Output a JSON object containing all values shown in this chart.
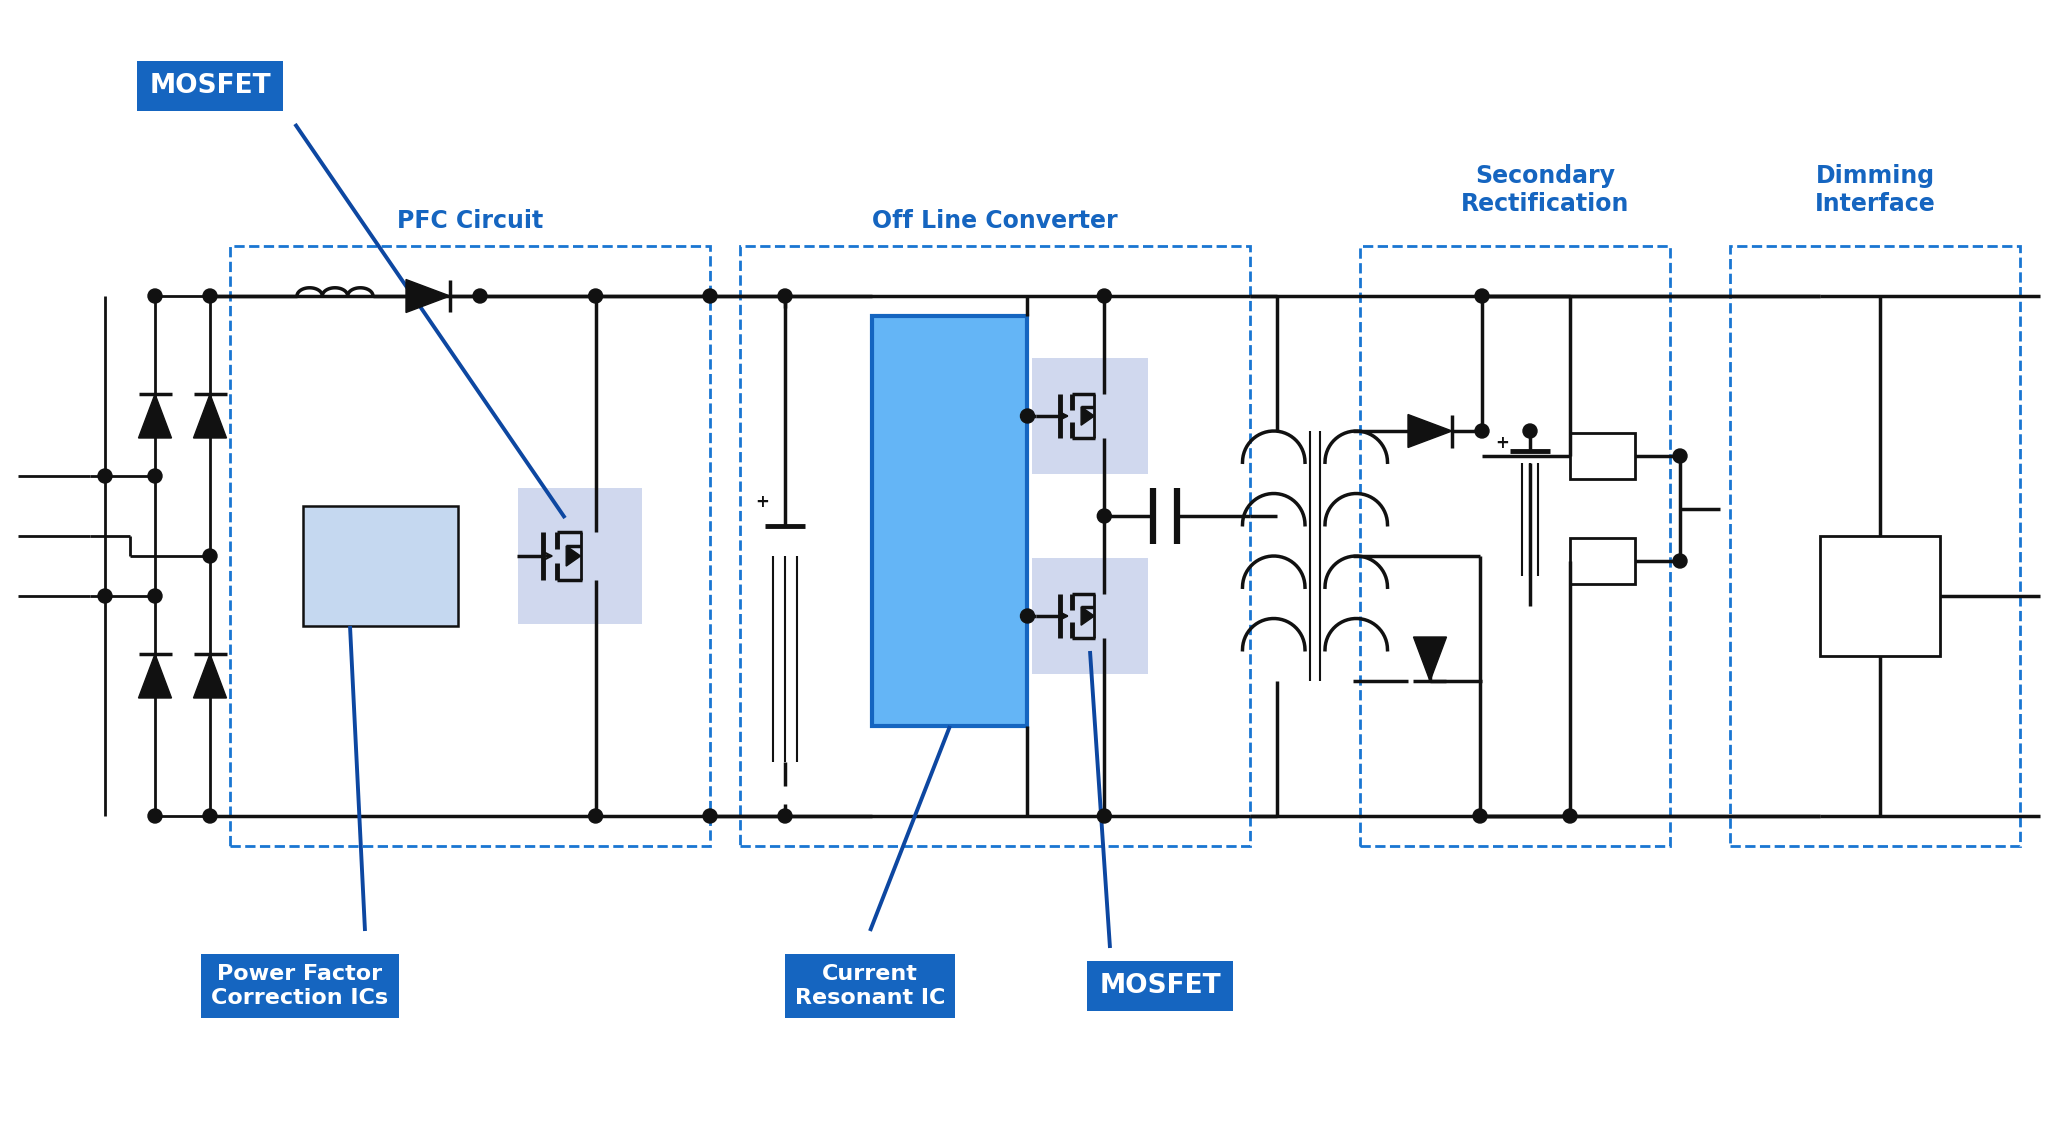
{
  "bg_color": "#ffffff",
  "cc": "#111111",
  "blue_dark": "#0D47A1",
  "blue_label": "#1565C0",
  "blue_dash": "#1976D2",
  "blue_box_bg": "#1565C0",
  "blue_cap_fill": "#64B5F6",
  "blue_cap_edge": "#1565C0",
  "pfc_ic_fill": "#C5D8F0",
  "mosfet_bg": "#D0D8EE",
  "label_mosfet_top": "MOSFET",
  "label_pfc": "PFC Circuit",
  "label_offconv": "Off Line Converter",
  "label_secondary": "Secondary\nRectification",
  "label_dimming": "Dimming\nInterface",
  "label_pfc_ic": "Power Factor\nCorrection ICs",
  "label_current_ic": "Current\nResonant IC",
  "label_mosfet_bot": "MOSFET",
  "figsize": [
    20.66,
    11.46
  ],
  "dpi": 100
}
